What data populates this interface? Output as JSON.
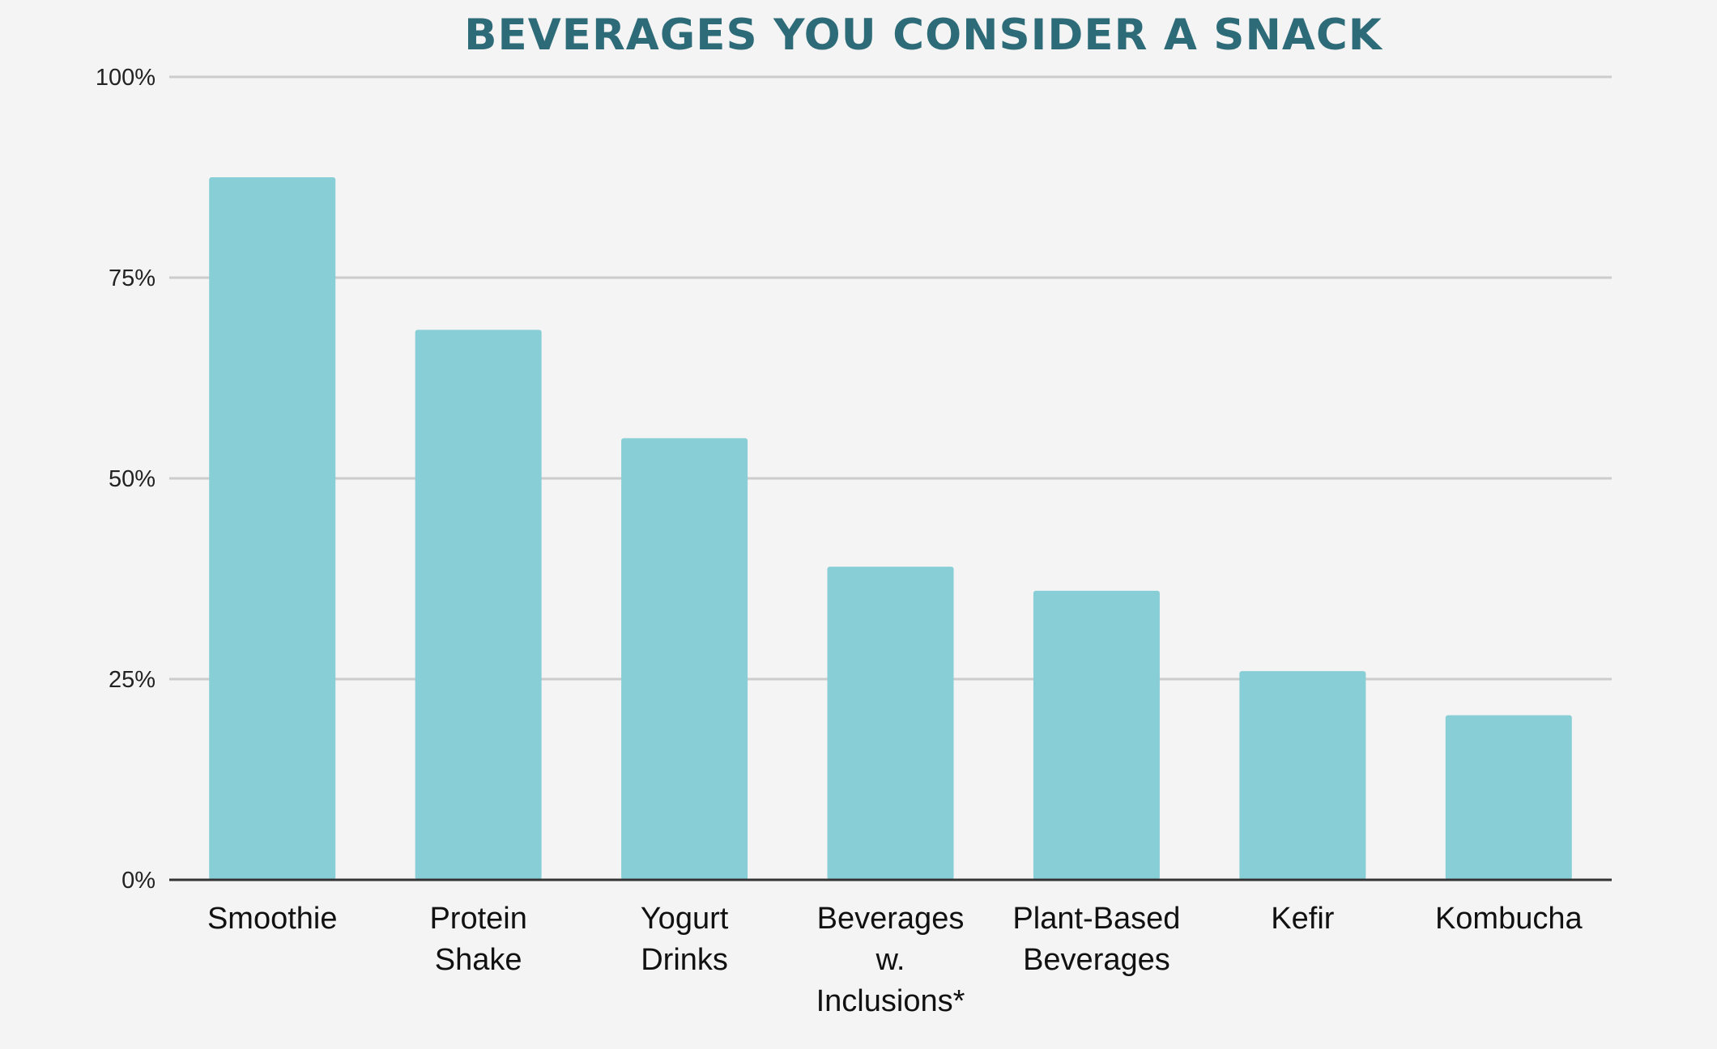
{
  "chart_data": {
    "type": "bar",
    "title": "BEVERAGES YOU CONSIDER A SNACK",
    "categories": [
      [
        "Smoothie"
      ],
      [
        "Protein",
        "Shake"
      ],
      [
        "Yogurt",
        "Drinks"
      ],
      [
        "Beverages",
        "w.",
        "Inclusions*"
      ],
      [
        "Plant-Based",
        "Beverages"
      ],
      [
        "Kefir"
      ],
      [
        "Kombucha"
      ]
    ],
    "values": [
      87.5,
      68.5,
      55,
      39,
      36,
      26,
      20.5
    ],
    "ylim": [
      0,
      100
    ],
    "yticks": [
      0,
      25,
      50,
      75,
      100
    ],
    "ytick_labels": [
      "0%",
      "25%",
      "50%",
      "75%",
      "100%"
    ],
    "grid": true,
    "legend": "none",
    "colors": {
      "bar": "#88ced6",
      "title": "#2e6b78",
      "grid": "#cccccc",
      "axis": "#333333"
    }
  }
}
